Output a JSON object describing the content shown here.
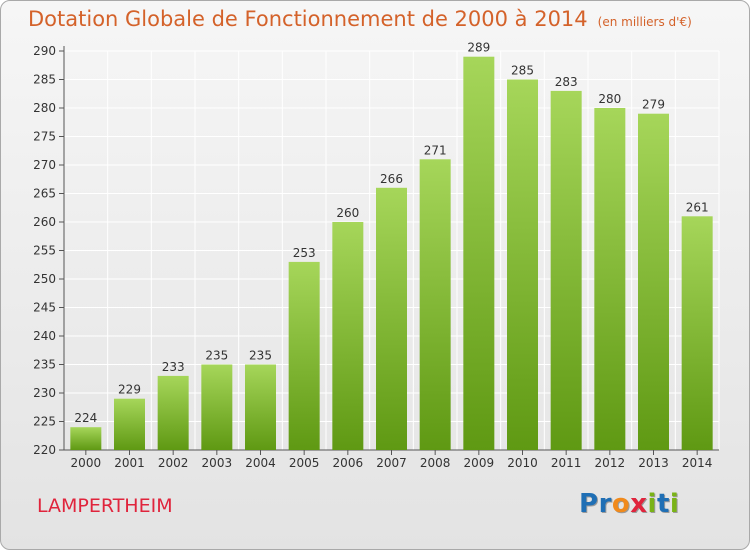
{
  "title": "Dotation Globale de Fonctionnement de 2000 à 2014",
  "unit": "(en milliers d'€)",
  "city": "LAMPERTHEIM",
  "logo": "Proxiti",
  "colors": {
    "title": "#d4622a",
    "city": "#e0243c",
    "bar_top": "#a6d65a",
    "bar_bottom": "#5f9913",
    "grid": "#ffffff",
    "logo_letters": [
      "#1f6fb5",
      "#1f6fb5",
      "#f08a1c",
      "#e0243c",
      "#7ab317",
      "#1f6fb5",
      "#7ab317"
    ]
  },
  "chart_data": {
    "type": "bar",
    "title": "Dotation Globale de Fonctionnement de 2000 à 2014",
    "subtitle": "(en milliers d'€)",
    "xlabel": "",
    "ylabel": "",
    "categories": [
      "2000",
      "2001",
      "2002",
      "2003",
      "2004",
      "2005",
      "2006",
      "2007",
      "2008",
      "2009",
      "2010",
      "2011",
      "2012",
      "2013",
      "2014"
    ],
    "values": [
      224,
      229,
      233,
      235,
      235,
      253,
      260,
      266,
      271,
      289,
      285,
      283,
      280,
      279,
      261
    ],
    "ylim": [
      220,
      290
    ],
    "yticks": [
      220,
      225,
      230,
      235,
      240,
      245,
      250,
      255,
      260,
      265,
      270,
      275,
      280,
      285,
      290
    ],
    "grid": true,
    "data_labels": true
  }
}
